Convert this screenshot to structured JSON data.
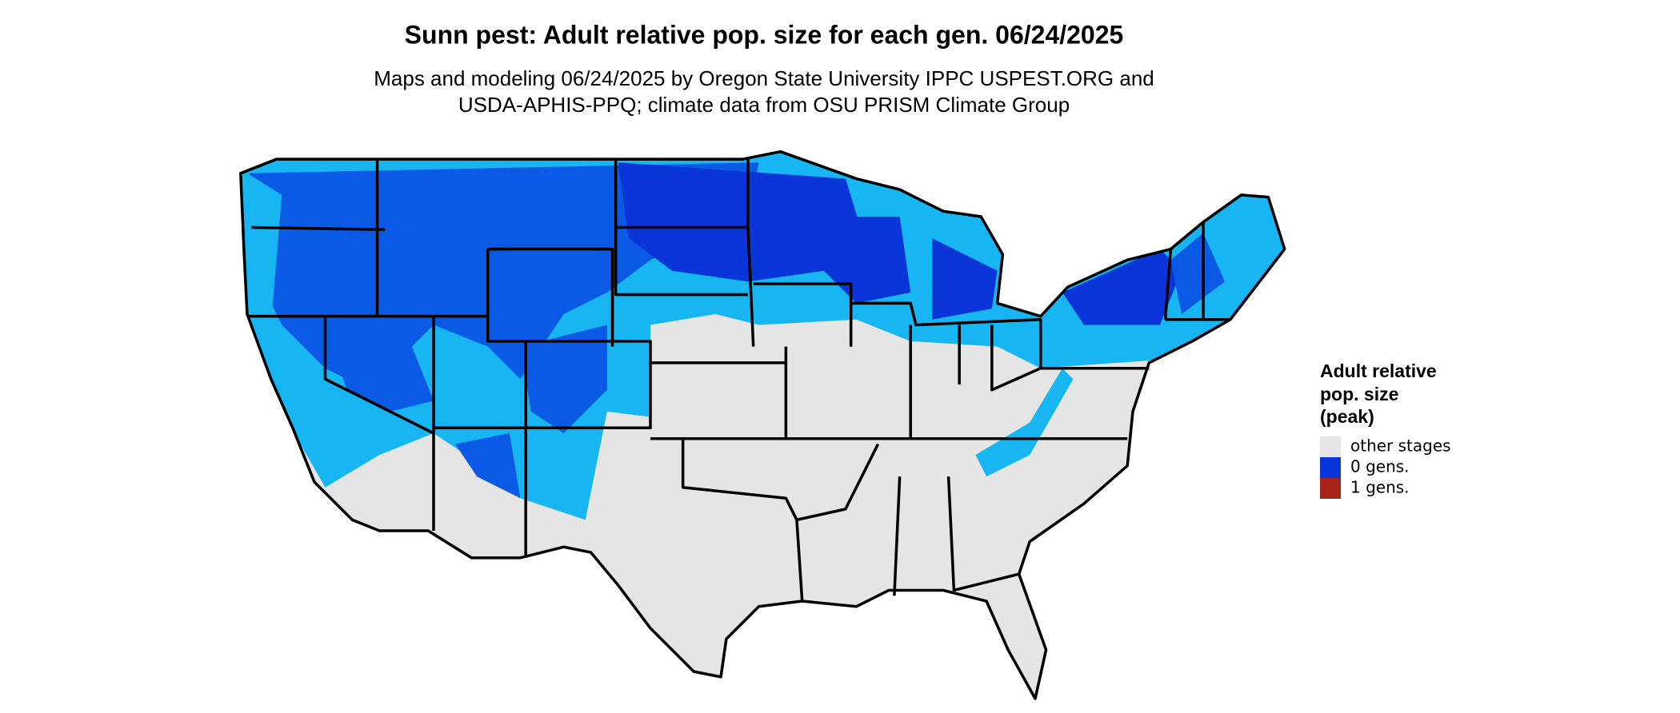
{
  "title": "Sunn pest: Adult relative pop. size for each gen. 06/24/2025",
  "subtitle": [
    "Maps and modeling 06/24/2025 by Oregon State University IPPC USPEST.ORG and",
    "USDA-APHIS-PPQ; climate data from OSU PRISM Climate Group"
  ],
  "legend": {
    "title": [
      "Adult relative",
      "pop. size",
      "(peak)"
    ],
    "items": [
      {
        "label": "other stages",
        "color": "#e5e5e5"
      },
      {
        "label": "0 gens.",
        "color": "#0a35d8"
      },
      {
        "label": "1 gens.",
        "color": "#a8231a"
      }
    ]
  }
}
